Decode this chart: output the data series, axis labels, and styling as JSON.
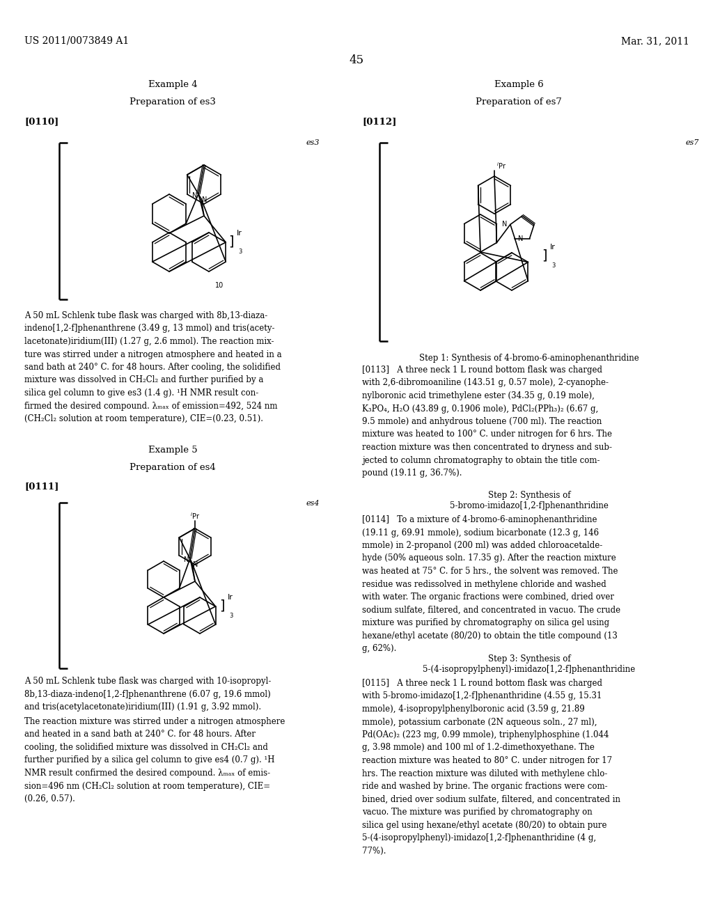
{
  "page_number": "45",
  "header_left": "US 2011/0073849 A1",
  "header_right": "Mar. 31, 2011",
  "background_color": "#ffffff",
  "text_color": "#000000",
  "font_family": "DejaVu Serif",
  "ex4_title": "Example 4",
  "ex4_subtitle": "Preparation of es3",
  "ex4_tag": "[0110]",
  "ex4_label": "es3",
  "ex4_number": "10",
  "ex5_title": "Example 5",
  "ex5_subtitle": "Preparation of es4",
  "ex5_tag": "[0111]",
  "ex5_label": "es4",
  "ex6_title": "Example 6",
  "ex6_subtitle": "Preparation of es7",
  "ex6_tag": "[0112]",
  "ex6_label": "es7",
  "body_0110": "A 50 mL Schlenk tube flask was charged with 8b,13-diaza-\nindeno[1,2-f]phenanthrene (3.49 g, 13 mmol) and tris(acety-\nlacetonate)iridium(III) (1.27 g, 2.6 mmol). The reaction mix-\nture was stirred under a nitrogen atmosphere and heated in a\nsand bath at 240° C. for 48 hours. After cooling, the solidified\nmixture was dissolved in CH₂Cl₂ and further purified by a\nsilica gel column to give es3 (1.4 g). ¹H NMR result con-\nfirmed the desired compound. λₘₐₓ of emission=492, 524 nm\n(CH₂Cl₂ solution at room temperature), CIE=(0.23, 0.51).",
  "body_0111a": "A 50 mL Schlenk tube flask was charged with 10-isopropyl-\n8b,13-diaza-indeno[1,2-f]phenanthrene (6.07 g, 19.6 mmol)\nand tris(acetylacetonate)iridium(III) (1.91 g, 3.92 mmol).",
  "body_0111b": "The reaction mixture was stirred under a nitrogen atmosphere\nand heated in a sand bath at 240° C. for 48 hours. After\ncooling, the solidified mixture was dissolved in CH₂Cl₂ and\nfurther purified by a silica gel column to give es4 (0.7 g). ¹H\nNMR result confirmed the desired compound. λₘₐₓ of emis-\nsion=496 nm (CH₂Cl₂ solution at room temperature), CIE=\n(0.26, 0.57).",
  "step1_title": "Step 1: Synthesis of 4-bromo-6-aminophenanthridine",
  "body_0113": "[0113]   A three neck 1 L round bottom flask was charged\nwith 2,6-dibromoaniline (143.51 g, 0.57 mole), 2-cyanophe-\nnylboronic acid trimethylene ester (34.35 g, 0.19 mole),\nK₃PO₄, H₂O (43.89 g, 0.1906 mole), PdCl₂(PPh₃)₂ (6.67 g,\n9.5 mmole) and anhydrous toluene (700 ml). The reaction\nmixture was heated to 100° C. under nitrogen for 6 hrs. The\nreaction mixture was then concentrated to dryness and sub-\njected to column chromatography to obtain the title com-\npound (19.11 g, 36.7%).",
  "step2_title": "Step 2: Synthesis of\n5-bromo-imidazo[1,2-f]phenanthridine",
  "body_0114": "[0114]   To a mixture of 4-bromo-6-aminophenanthridine\n(19.11 g, 69.91 mmole), sodium bicarbonate (12.3 g, 146\nmmole) in 2-propanol (200 ml) was added chloroacetalde-\nhyde (50% aqueous soln. 17.35 g). After the reaction mixture\nwas heated at 75° C. for 5 hrs., the solvent was removed. The\nresidue was redissolved in methylene chloride and washed\nwith water. The organic fractions were combined, dried over\nsodium sulfate, filtered, and concentrated in vacuo. The crude\nmixture was purified by chromatography on silica gel using\nhexane/ethyl acetate (80/20) to obtain the title compound (13\ng, 62%).",
  "step3_title": "Step 3: Synthesis of\n5-(4-isopropylphenyl)-imidazo[1,2-f]phenanthridine",
  "body_0115": "[0115]   A three neck 1 L round bottom flask was charged\nwith 5-bromo-imidazo[1,2-f]phenanthridine (4.55 g, 15.31\nmmole), 4-isopropylphenylboronic acid (3.59 g, 21.89\nmmole), potassium carbonate (2N aqueous soln., 27 ml),\nPd(OAc)₂ (223 mg, 0.99 mmole), triphenylphosphine (1.044\ng, 3.98 mmole) and 100 ml of 1.2-dimethoxyethane. The\nreaction mixture was heated to 80° C. under nitrogen for 17\nhrs. The reaction mixture was diluted with methylene chlo-\nride and washed by brine. The organic fractions were com-\nbined, dried over sodium sulfate, filtered, and concentrated in\nvacuo. The mixture was purified by chromatography on\nsilica gel using hexane/ethyl acetate (80/20) to obtain pure\n5-(4-isopropylphenyl)-imidazo[1,2-f]phenanthridine (4 g,\n77%)."
}
